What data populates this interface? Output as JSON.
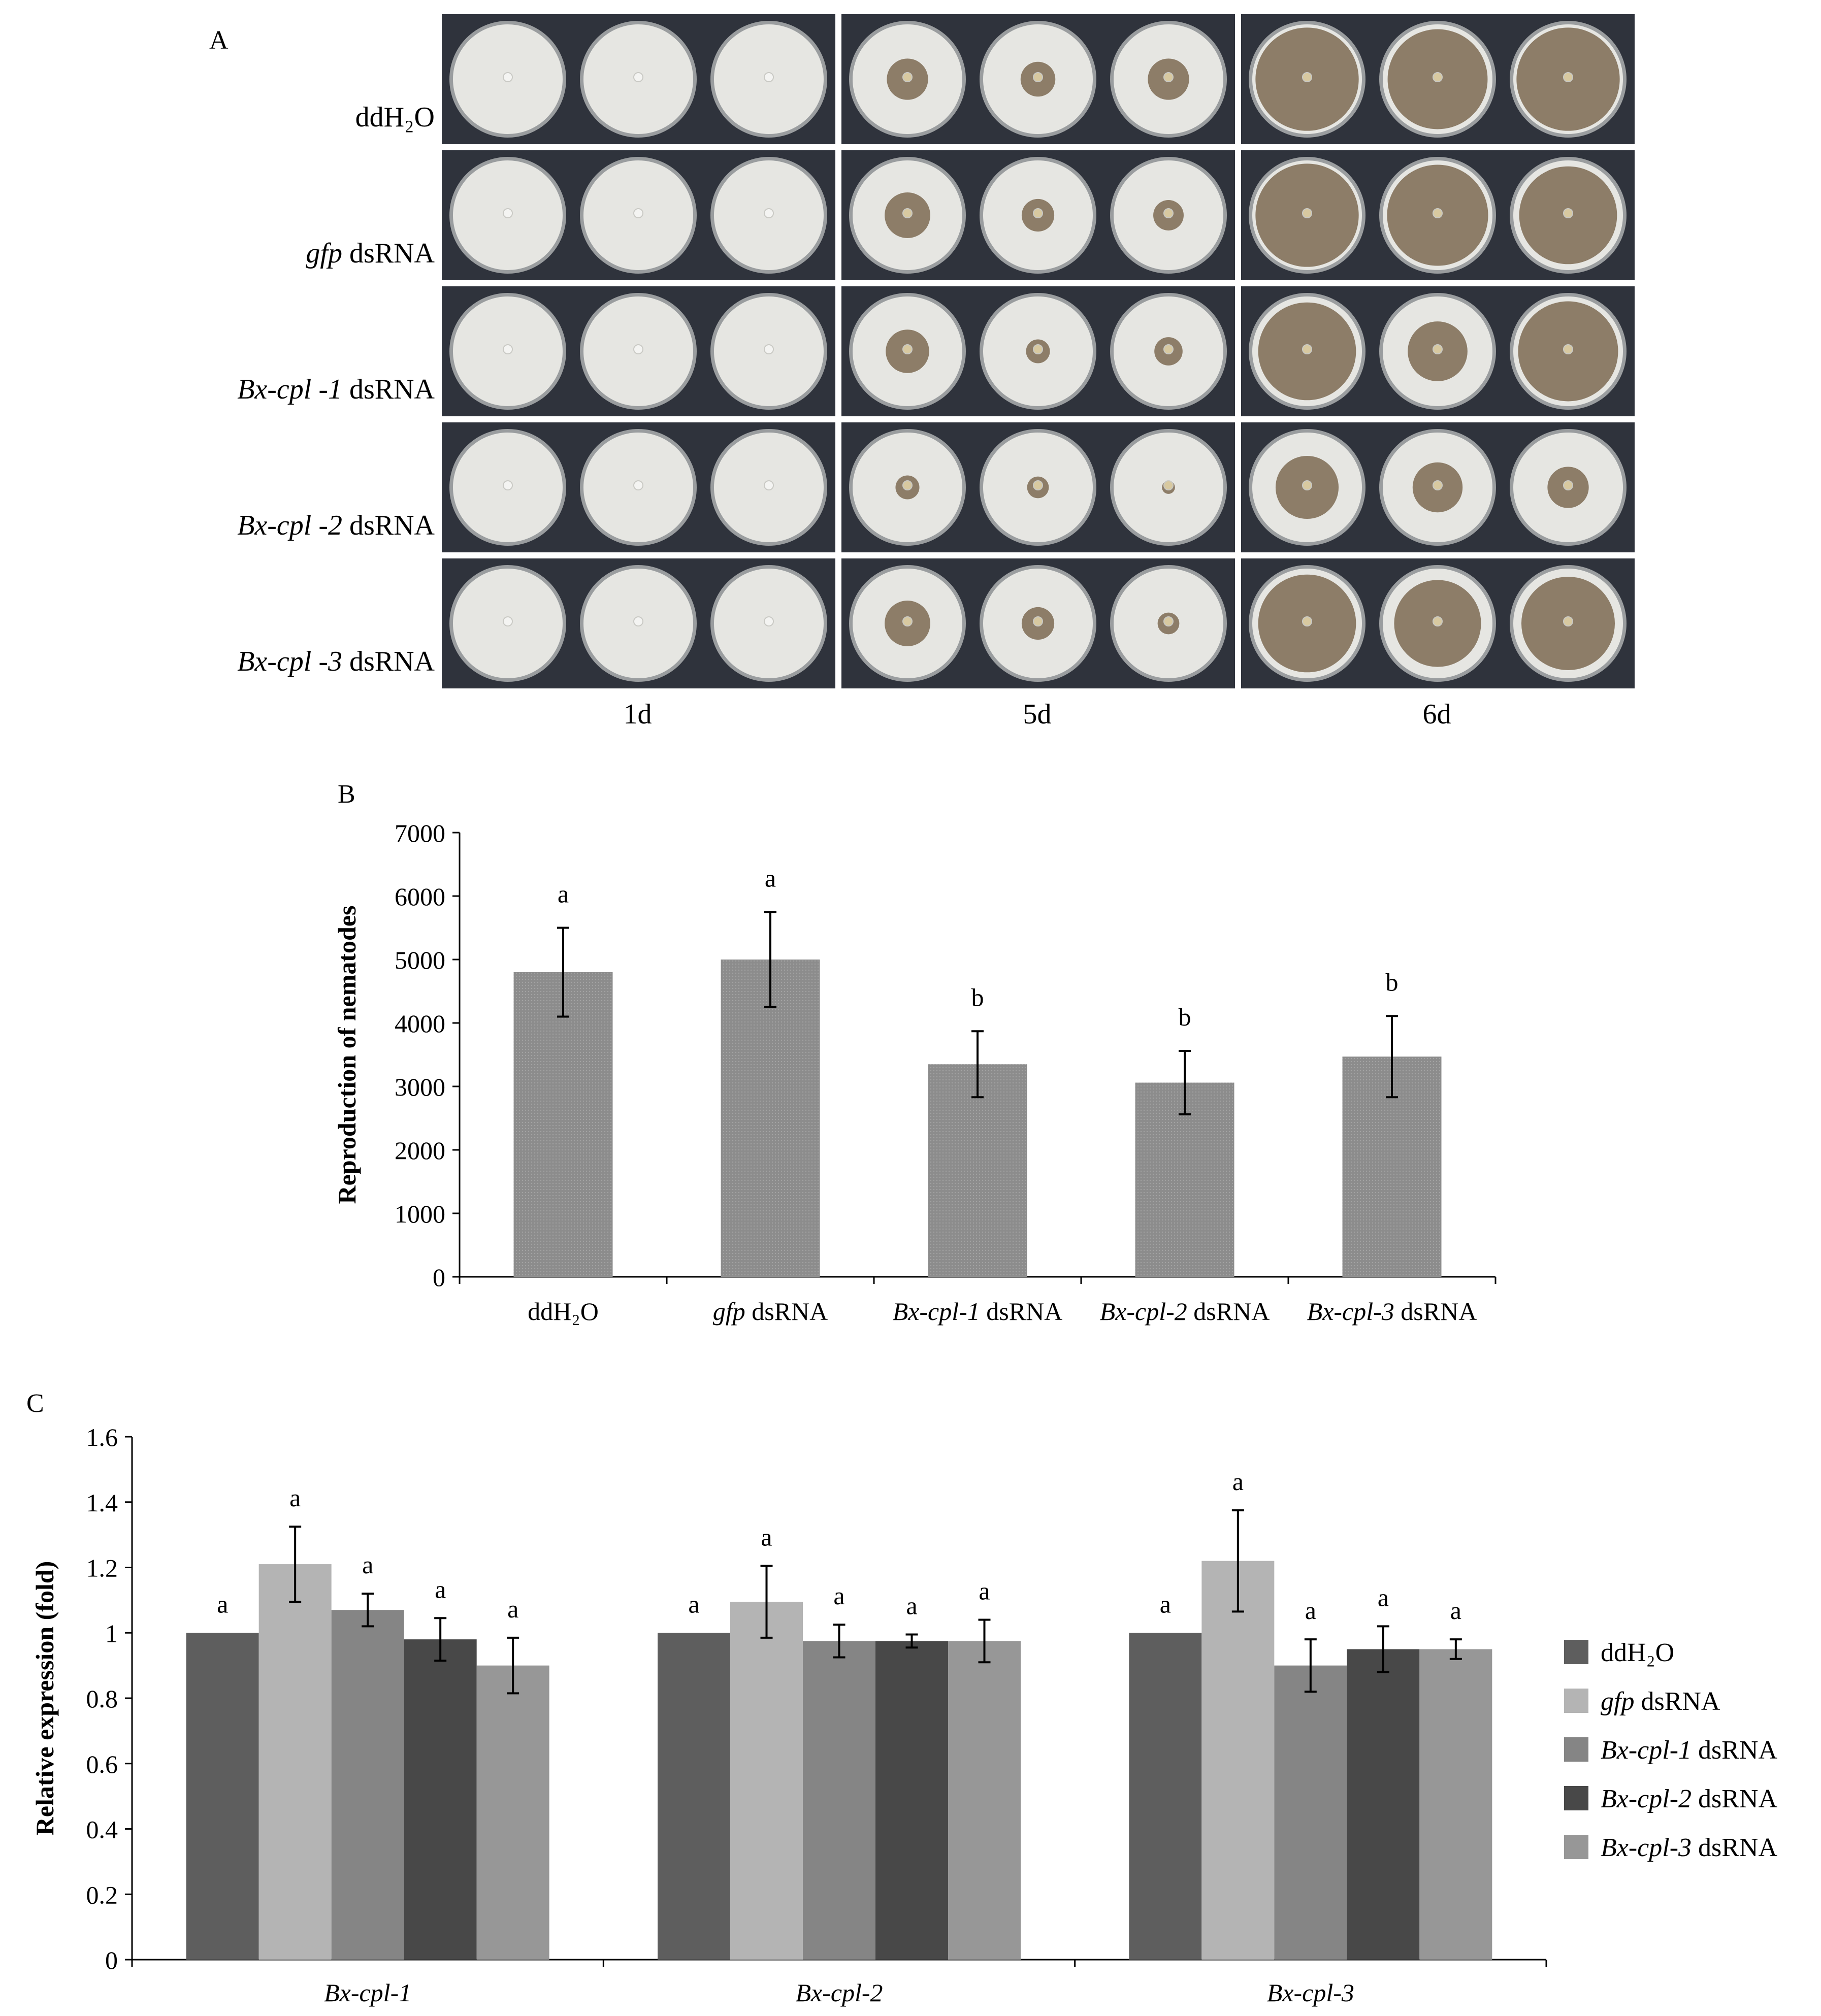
{
  "panel_a": {
    "letter": "A",
    "rows": [
      {
        "italic": "",
        "plain": "ddH₂O"
      },
      {
        "italic": "gfp",
        "plain": " dsRNA"
      },
      {
        "italic": "Bx-cpl -1",
        "plain": " dsRNA"
      },
      {
        "italic": "Bx-cpl -2",
        "plain": " dsRNA"
      },
      {
        "italic": "Bx-cpl -3",
        "plain": " dsRNA"
      }
    ],
    "time_points": [
      "1d",
      "5d",
      "6d"
    ],
    "growth_levels": [
      [
        [
          0,
          0,
          0
        ],
        [
          0.38,
          0.32,
          0.38
        ],
        [
          0.95,
          0.92,
          0.95
        ]
      ],
      [
        [
          0,
          0,
          0
        ],
        [
          0.42,
          0.3,
          0.28
        ],
        [
          0.95,
          0.93,
          0.9
        ]
      ],
      [
        [
          0,
          0,
          0
        ],
        [
          0.4,
          0.22,
          0.26
        ],
        [
          0.9,
          0.55,
          0.92
        ]
      ],
      [
        [
          0,
          0,
          0
        ],
        [
          0.22,
          0.2,
          0.12
        ],
        [
          0.58,
          0.46,
          0.38
        ]
      ],
      [
        [
          0,
          0,
          0
        ],
        [
          0.42,
          0.3,
          0.2
        ],
        [
          0.9,
          0.8,
          0.86
        ]
      ]
    ],
    "colors": {
      "background": "#2f333c",
      "agar": "#e6e6e2",
      "fungus": "#7d6a52",
      "rim": "#9a9d9f"
    }
  },
  "chart_data": [
    {
      "panel": "B",
      "type": "bar",
      "categories": [
        {
          "italic": "",
          "plain": "ddH₂O"
        },
        {
          "italic": "gfp",
          "plain": " dsRNA"
        },
        {
          "italic": "Bx-cpl-1",
          "plain": " dsRNA"
        },
        {
          "italic": "Bx-cpl-2",
          "plain": " dsRNA"
        },
        {
          "italic": "Bx-cpl-3",
          "plain": " dsRNA"
        }
      ],
      "values": [
        4800,
        5000,
        3350,
        3060,
        3470
      ],
      "errors": [
        700,
        750,
        520,
        500,
        640
      ],
      "significance": [
        "a",
        "a",
        "b",
        "b",
        "b"
      ],
      "ylabel": "Reproduction of nematodes",
      "ylim": [
        0,
        7000
      ],
      "yticks": [
        0,
        1000,
        2000,
        3000,
        4000,
        5000,
        6000,
        7000
      ],
      "bar_color": "#8c8c8c"
    },
    {
      "panel": "C",
      "type": "bar",
      "categories": [
        "Bx-cpl-1",
        "Bx-cpl-2",
        "Bx-cpl-3"
      ],
      "series": [
        {
          "legend": {
            "italic": "",
            "plain": "ddH₂O"
          },
          "color": "#5e5e5e",
          "values": [
            1.0,
            1.0,
            1.0
          ],
          "errors": [
            0,
            0,
            0
          ],
          "significance": [
            "a",
            "a",
            "a"
          ]
        },
        {
          "legend": {
            "italic": "gfp",
            "plain": " dsRNA"
          },
          "color": "#b4b4b4",
          "values": [
            1.21,
            1.095,
            1.22
          ],
          "errors": [
            0.115,
            0.11,
            0.155
          ],
          "significance": [
            "a",
            "a",
            "a"
          ]
        },
        {
          "legend": {
            "italic": "Bx-cpl-1",
            "plain": " dsRNA"
          },
          "color": "#858585",
          "values": [
            1.07,
            0.975,
            0.9
          ],
          "errors": [
            0.05,
            0.05,
            0.08
          ],
          "significance": [
            "a",
            "a",
            "a"
          ]
        },
        {
          "legend": {
            "italic": "Bx-cpl-2",
            "plain": " dsRNA"
          },
          "color": "#484848",
          "values": [
            0.98,
            0.975,
            0.95
          ],
          "errors": [
            0.065,
            0.02,
            0.07
          ],
          "significance": [
            "a",
            "a",
            "a"
          ]
        },
        {
          "legend": {
            "italic": "Bx-cpl-3",
            "plain": " dsRNA"
          },
          "color": "#979797",
          "values": [
            0.9,
            0.975,
            0.95
          ],
          "errors": [
            0.085,
            0.065,
            0.03
          ],
          "significance": [
            "a",
            "a",
            "a"
          ]
        }
      ],
      "ylabel": "Relative expression (fold)",
      "ylim": [
        0,
        1.6
      ],
      "yticks": [
        "0",
        "0.2",
        "0.4",
        "0.6",
        "0.8",
        "1",
        "1.2",
        "1.4",
        "1.6"
      ],
      "legend_position": "right"
    }
  ]
}
